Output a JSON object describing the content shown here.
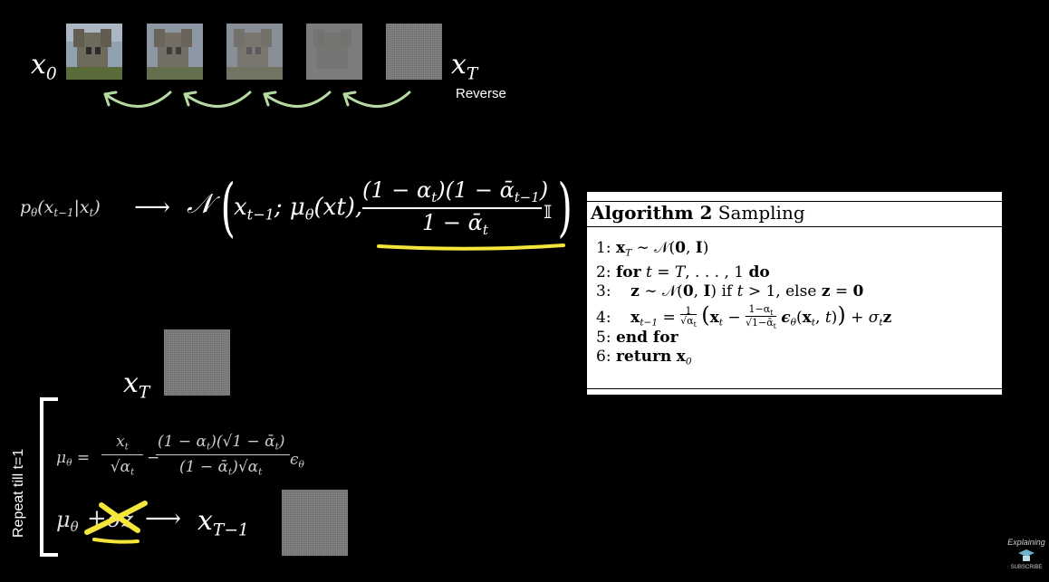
{
  "top_row": {
    "x0_label": "x",
    "x0_sub": "0",
    "xT_label": "x",
    "xT_sub": "T",
    "reverse_label": "Reverse"
  },
  "formula1": {
    "lhs": "p",
    "lhs_sub": "θ",
    "lhs_args": "(x",
    "lhs_args_sub": "t−1",
    "lhs_args_rest": "|x",
    "lhs_args_sub2": "t",
    "lhs_close": ")",
    "arrow": "⟶",
    "normal": "𝒩",
    "mean_start": "x",
    "mean_start_sub": "t−1",
    "mean_sep": "; μ",
    "mean_mu_sub": "θ",
    "mean_args": "(xt),",
    "numerator": "(1 − α",
    "numerator_sub1": "t",
    "numerator_mid": ")(1 − ᾱ",
    "numerator_sub2": "t−1",
    "numerator_end": ")",
    "denominator": "1 − ᾱ",
    "denominator_sub": "t",
    "identity": "𝕀"
  },
  "algorithm": {
    "title_bold": "Algorithm 2",
    "title_rest": " Sampling",
    "lines": [
      {
        "num": "1:",
        "text": "x_T ∼ 𝒩(0, I)"
      },
      {
        "num": "2:",
        "text": "for t = T, . . . , 1 do"
      },
      {
        "num": "3:",
        "text": "z ∼ 𝒩(0, I) if t > 1, else z = 0"
      },
      {
        "num": "4:",
        "text": "x_{t−1} = 1/√α_t ( x_t − (1−α_t)/√(1−ᾱ_t) ε_θ(x_t, t) ) + σ_t z"
      },
      {
        "num": "5:",
        "text": "end for"
      },
      {
        "num": "6:",
        "text": "return x_0"
      }
    ]
  },
  "lower": {
    "xT_label": "x",
    "xT_sub": "T",
    "repeat_label": "Repeat till t=1",
    "mu_formula": {
      "mu": "μ",
      "mu_sub": "θ",
      "eq": "=",
      "frac1_num": "x",
      "frac1_num_sub": "t",
      "frac1_den": "√α",
      "frac1_den_sub": "t",
      "minus": "−",
      "frac2_num": "(1 − α",
      "frac2_num_sub": "t",
      "frac2_num_mid": ")(√1 − ᾱ",
      "frac2_num_sub2": "t",
      "frac2_num_end": ")",
      "frac2_den": "(1 − ᾱ",
      "frac2_den_sub": "t",
      "frac2_den_mid": ")√α",
      "frac2_den_sub2": "t",
      "eps": "ϵ",
      "eps_sub": "θ"
    },
    "step": {
      "mu": "μ",
      "mu_sub": "θ",
      "plus": "+",
      "crossed": "σz",
      "arrow": "⟶",
      "x": "x",
      "x_sub": "T−1"
    }
  },
  "logo": {
    "line1": "Expl",
    "line2": "aining",
    "subscribe": "SUBSCRIBE"
  },
  "colors": {
    "background": "#000000",
    "arrow_green": "#b5d9a1",
    "highlight_yellow": "#f4e63a",
    "noise_gray": "#7a7a7a"
  }
}
